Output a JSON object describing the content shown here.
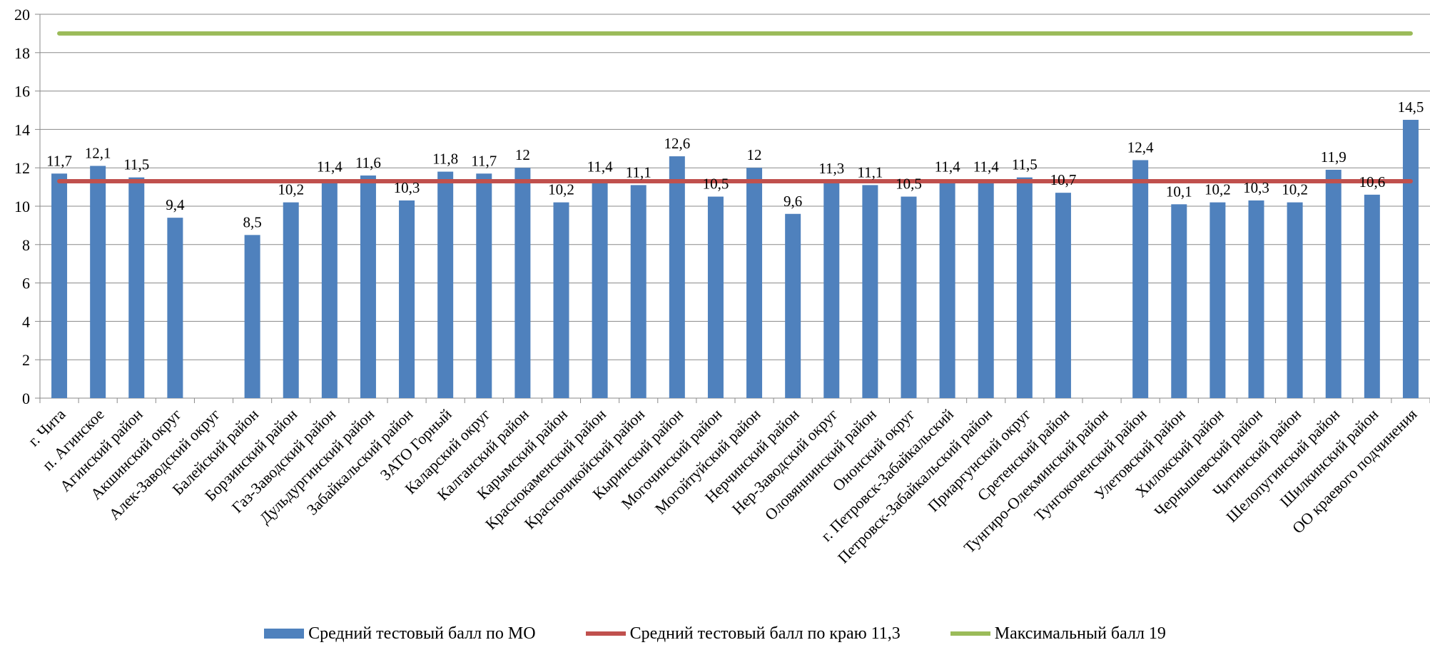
{
  "chart_data": {
    "type": "bar",
    "categories": [
      "г. Чита",
      "п. Агинское",
      "Агинский район",
      "Акшинский округ",
      "Алек-Заводский округ",
      "Балейский район",
      "Борзинский район",
      "Газ-Заводский район",
      "Дульдургинский район",
      "Забайкальский район",
      "ЗАТО Горный",
      "Каларский округ",
      "Калганский район",
      "Карымский район",
      "Краснокаменский район",
      "Красночикойский район",
      "Кыринский район",
      "Могочинский район",
      "Могойтуйский район",
      "Нерчинский район",
      "Нер-Заводский округ",
      "Оловяннинский район",
      "Ононский округ",
      "г. Петровск-Забайкальский",
      "Петровск-Забайкальский район",
      "Приаргунский округ",
      "Сретенский район",
      "Тунгиро-Олекминский район",
      "Тунгокоченский район",
      "Улетовский район",
      "Хилокский район",
      "Чернышевский район",
      "Читинский район",
      "Шелопугинский район",
      "Шилкинский район",
      "ОО краевого подчинения"
    ],
    "series": [
      {
        "name": "Средний тестовый балл  по МО",
        "type": "bar",
        "color": "#4F81BD",
        "values": [
          11.7,
          12.1,
          11.5,
          9.4,
          null,
          8.5,
          10.2,
          11.4,
          11.6,
          10.3,
          11.8,
          11.7,
          12,
          10.2,
          11.4,
          11.1,
          12.6,
          10.5,
          12,
          9.6,
          11.3,
          11.1,
          10.5,
          11.4,
          11.4,
          11.5,
          10.7,
          null,
          12.4,
          10.1,
          10.2,
          10.3,
          10.2,
          11.9,
          10.6,
          14.5
        ],
        "labels": [
          "11,7",
          "12,1",
          "11,5",
          "9,4",
          "",
          "8,5",
          "10,2",
          "11,4",
          "11,6",
          "10,3",
          "11,8",
          "11,7",
          "12",
          "10,2",
          "11,4",
          "11,1",
          "12,6",
          "10,5",
          "12",
          "9,6",
          "11,3",
          "11,1",
          "10,5",
          "11,4",
          "11,4",
          "11,5",
          "10,7",
          "",
          "12,4",
          "10,1",
          "10,2",
          "10,3",
          "10,2",
          "11,9",
          "10,6",
          "14,5"
        ]
      },
      {
        "name": "Средний тестовый балл по краю 11,3",
        "type": "line",
        "color": "#C0504D",
        "value": 11.3
      },
      {
        "name": "Максимальный балл 19",
        "type": "line",
        "color": "#9BBB59",
        "value": 19
      }
    ],
    "yticks": [
      "0",
      "2",
      "4",
      "6",
      "8",
      "10",
      "12",
      "14",
      "16",
      "18",
      "20"
    ],
    "ylim": [
      0,
      20
    ],
    "grid": true,
    "legend_position": "bottom"
  }
}
